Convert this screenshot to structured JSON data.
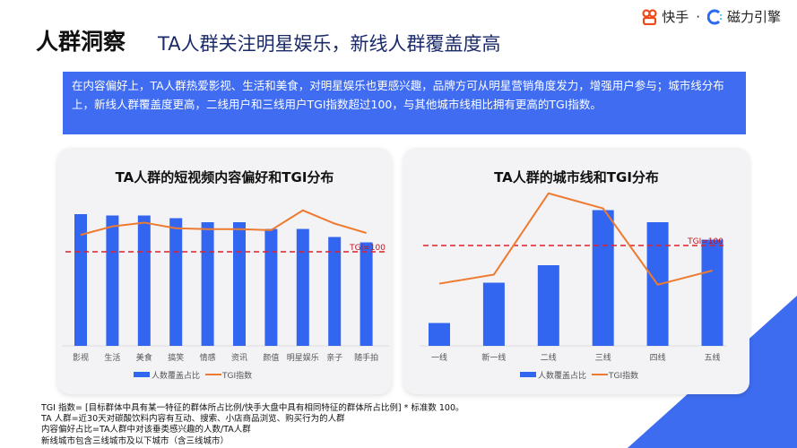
{
  "header": {
    "title": "人群洞察",
    "subtitle": "TA人群关注明星娱乐，新线人群覆盖度高",
    "logo_kuaishou": "快手",
    "logo_sep": "·",
    "logo_cili": "磁力引擎"
  },
  "banner": {
    "text": "在内容偏好上，TA人群热爱影视、生活和美食，对明星娱乐也更感兴趣，品牌方可从明星营销角度发力，增强用户参与；城市线分布上，新线人群覆盖度更高，二线用户和三线用户TGI指数超过100，与其他城市线相比拥有更高的TGI指数。"
  },
  "colors": {
    "bar": "#3366f0",
    "line": "#ee7a30",
    "ref": "#e0202a",
    "banner": "#3f6cf0"
  },
  "chart_data": [
    {
      "type": "bar+line",
      "title": "TA人群的短视频内容偏好和TGI分布",
      "categories": [
        "影视",
        "生活",
        "美食",
        "搞笑",
        "情感",
        "资讯",
        "颜值",
        "明星娱乐",
        "亲子",
        "随手拍"
      ],
      "series": [
        {
          "name": "人数覆盖占比",
          "type": "bar",
          "values": [
            98,
            97,
            97,
            95,
            92,
            92,
            87,
            87,
            81,
            77
          ]
        },
        {
          "name": "TGI指数",
          "type": "line",
          "values": [
            118,
            127,
            131,
            125,
            124,
            124,
            123,
            144,
            130,
            120
          ]
        }
      ],
      "reference_line": {
        "value": 100,
        "label": "TGI=100"
      },
      "legend": "bottom",
      "grid": false
    },
    {
      "type": "bar+line",
      "title": "TA人群的城市线和TGI分布",
      "categories": [
        "一线",
        "新一线",
        "二线",
        "三线",
        "四线",
        "五线"
      ],
      "series": [
        {
          "name": "人数覆盖占比",
          "type": "bar",
          "values": [
            17,
            47,
            60,
            101,
            92,
            79
          ]
        },
        {
          "name": "TGI指数",
          "type": "line",
          "values": [
            62,
            71,
            152,
            137,
            61,
            75
          ]
        }
      ],
      "reference_line": {
        "value": 100,
        "label": "TGI=100"
      },
      "legend": "bottom",
      "grid": false
    }
  ],
  "notes": [
    "TGI 指数= [目标群体中具有某一特征的群体所占比例/快手大盘中具有相同特征的群体所占比例] * 标准数 100。",
    "TA 人群=近30天对碳酸饮料内容有互动、搜索、小店商品浏览、购买行为的人群",
    "内容偏好占比=TA人群中对该垂类感兴趣的人数/TA人群",
    "新线城市包含三线城市及以下城市（含三线城市）"
  ]
}
